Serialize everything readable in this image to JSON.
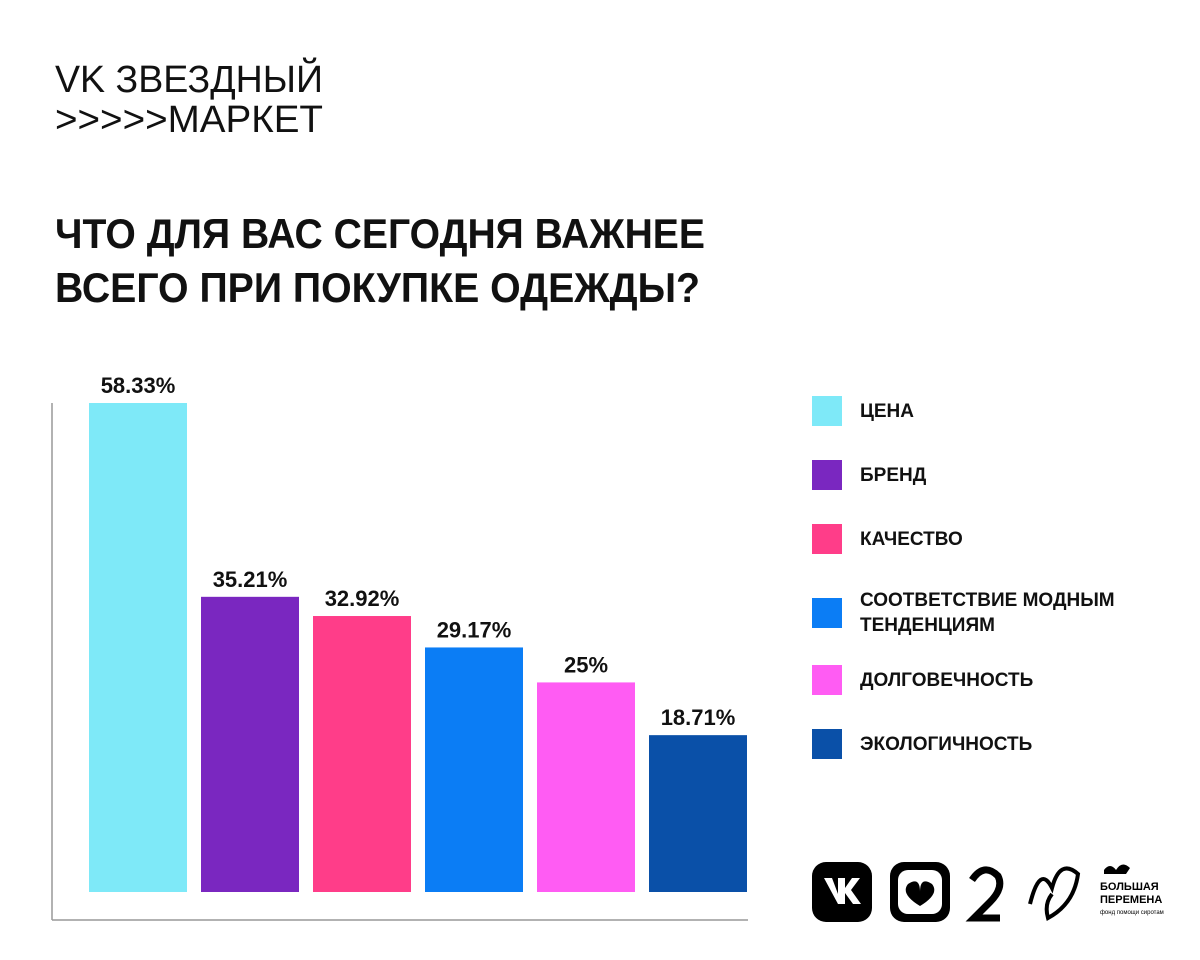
{
  "header": {
    "brand_line1": "VK ЗВЕЗДНЫЙ",
    "brand_line2": ">>>>>МАРКЕТ"
  },
  "chart_data": {
    "type": "bar",
    "title": [
      "ЧТО ДЛЯ ВАС СЕГОДНЯ ВАЖНЕЕ",
      "ВСЕГО ПРИ ПОКУПКЕ ОДЕЖДЫ?"
    ],
    "categories": [
      "ЦЕНА",
      "БРЕНД",
      "КАЧЕСТВО",
      "СООТВЕТСТВИЕ МОДНЫМ ТЕНДЕНЦИЯМ",
      "ДОЛГОВЕЧНОСТЬ",
      "ЭКОЛОГИЧНОСТЬ"
    ],
    "values": [
      58.33,
      35.21,
      32.92,
      29.17,
      25,
      18.71
    ],
    "value_labels": [
      "58.33%",
      "35.21%",
      "32.92%",
      "29.17%",
      "25%",
      "18.71%"
    ],
    "colors": [
      "#7ee9f8",
      "#7a27c0",
      "#ff3d89",
      "#0b7df5",
      "#ff5cf3",
      "#0a50a8"
    ],
    "ylim": [
      0,
      60
    ],
    "legend": "right"
  },
  "logos": {
    "fund_name": [
      "БОЛЬШАЯ",
      "ПЕРЕМЕНА"
    ],
    "fund_tagline": "фонд помощи сиротам"
  }
}
